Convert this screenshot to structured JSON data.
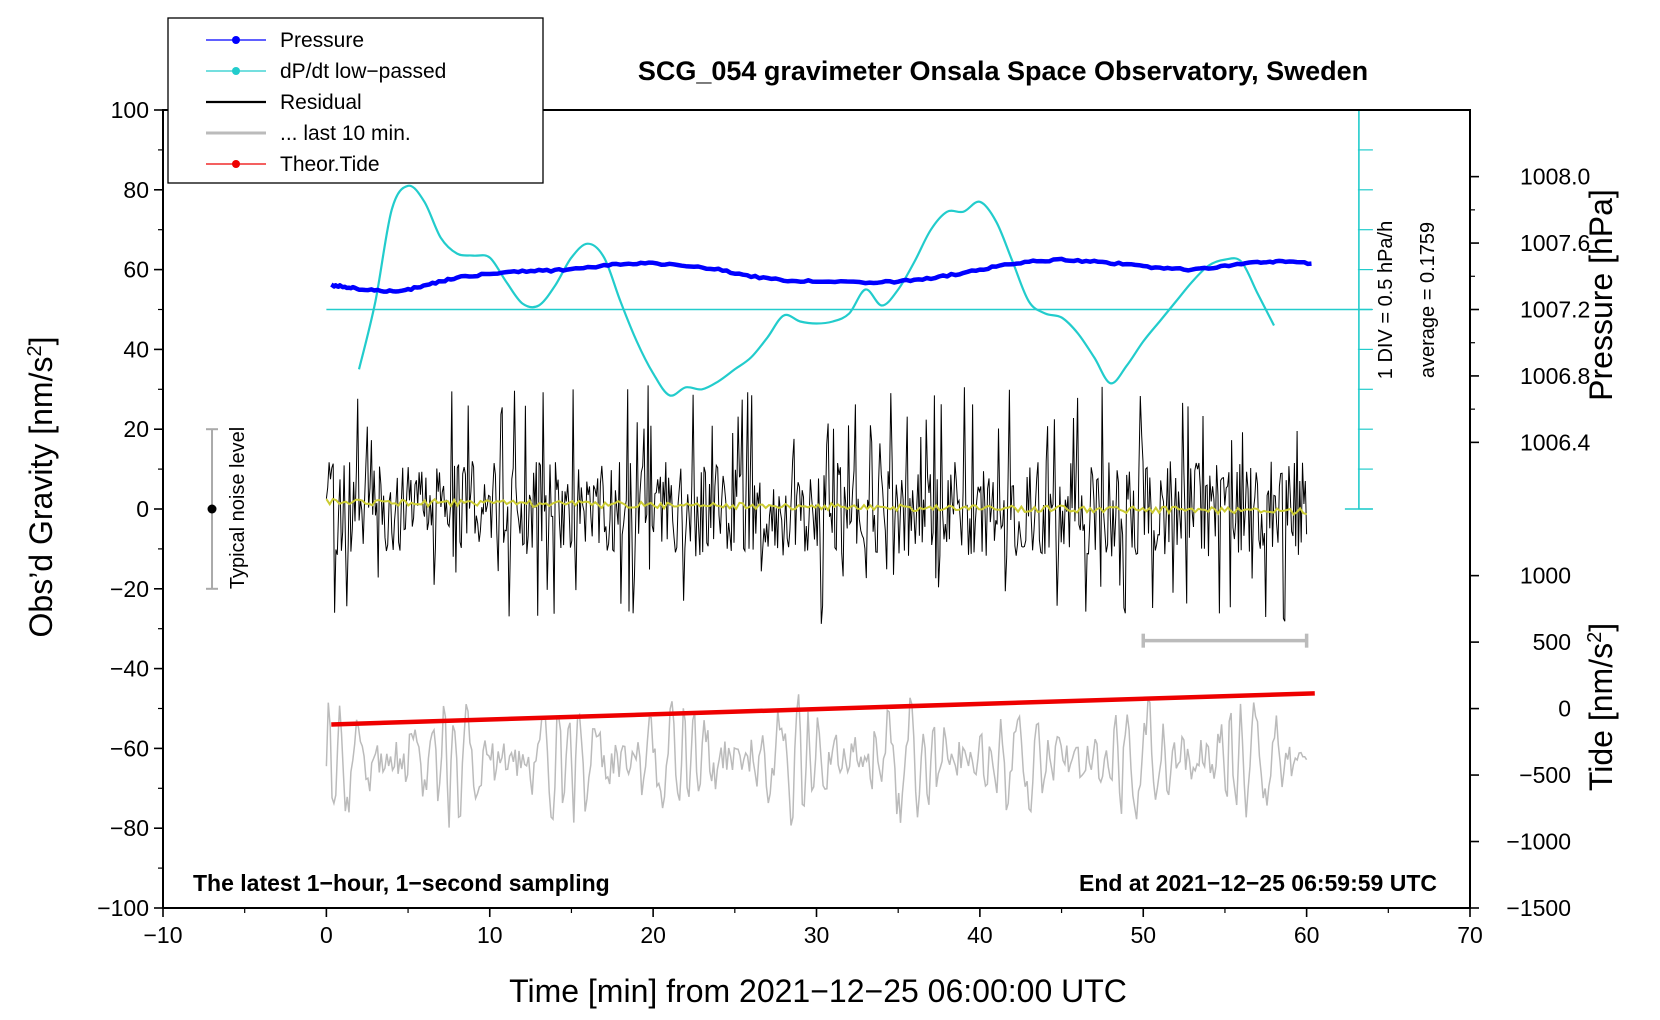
{
  "chart_data": {
    "type": "line",
    "title": "SCG_054 gravimeter Onsala Space Observatory, Sweden",
    "xlabel": "Time [min] from 2021−12−25 06:00:00 UTC",
    "ylabel_left": "Obs’d Gravity [nm/s",
    "ylabel_left_sup": "2",
    "ylabel_left_end": "]",
    "ylabel_right_top": "Pressure [hPa]",
    "ylabel_right_bottom": "Tide [nm/s",
    "ylabel_right_bottom_sup": "2",
    "ylabel_right_bottom_end": "]",
    "xlim": [
      -10,
      70
    ],
    "ylim": [
      -100,
      100
    ],
    "xticks": [
      -10,
      0,
      10,
      20,
      30,
      40,
      50,
      60,
      70
    ],
    "xtick_labels": [
      "−10",
      "0",
      "10",
      "20",
      "30",
      "40",
      "50",
      "60",
      "70"
    ],
    "yticks": [
      -100,
      -80,
      -60,
      -40,
      -20,
      0,
      20,
      40,
      60,
      80,
      100
    ],
    "ytick_labels": [
      "−100",
      "−80",
      "−60",
      "−40",
      "−20",
      "0",
      "20",
      "40",
      "60",
      "80",
      "100"
    ],
    "pressure_axis": {
      "ticks": [
        1006.4,
        1006.8,
        1007.2,
        1007.6,
        1008.0
      ],
      "tick_labels": [
        "1006.4",
        "1006.8",
        "1007.2",
        "1007.6",
        "1008.0"
      ],
      "map": {
        "value_a": 1007.2,
        "gravity_a": 50,
        "value_b": 1008.0,
        "gravity_b": 83.3
      }
    },
    "tide_axis": {
      "ticks": [
        -1500,
        -1000,
        -500,
        0,
        500,
        1000
      ],
      "tick_labels": [
        "−1500",
        "−1000",
        "−500",
        "0",
        "500",
        "1000"
      ],
      "map": {
        "value_a": -1500,
        "gravity_a": -100,
        "value_b": 1000,
        "gravity_b": -16.7
      }
    },
    "legend": {
      "position": "top-left",
      "entries": [
        {
          "label": "Pressure",
          "color": "#0000ff",
          "marker": true
        },
        {
          "label": "dP/dt low−passed",
          "color": "#22cccc",
          "marker": true
        },
        {
          "label": "Residual",
          "color": "#000000",
          "marker": false
        },
        {
          "label": "... last 10 min.",
          "color": "#bbbbbb",
          "marker": false
        },
        {
          "label": "Theor.Tide",
          "color": "#ee0000",
          "marker": true
        }
      ]
    },
    "annotations": {
      "noise_label": "Typical noise level",
      "noise_range": [
        -20,
        20
      ],
      "noise_x": -7,
      "scale_note_1": "1 DIV = 0.5 hPa/h",
      "scale_note_2": "average = 0.1759",
      "bottom_left": "The latest 1−hour, 1−second sampling",
      "bottom_right": "End at 2021−12−25 06:59:59 UTC",
      "last10_bracket": [
        50,
        60
      ],
      "last10_bracket_y": -33
    },
    "dpdt_axis": {
      "x": 63.2,
      "y_from": 0,
      "y_to": 100,
      "div_step": 10,
      "zero_line_y": 50,
      "zero_line_x_from": 0,
      "zero_line_x_to": 64
    },
    "series": [
      {
        "name": "Pressure",
        "color": "#0000ff",
        "units": "gravity-scaled",
        "points": [
          [
            0.3,
            56
          ],
          [
            1,
            55.8
          ],
          [
            2,
            55.2
          ],
          [
            3.5,
            54.5
          ],
          [
            5,
            55
          ],
          [
            6.5,
            56.5
          ],
          [
            8,
            58
          ],
          [
            10,
            59
          ],
          [
            12,
            59.6
          ],
          [
            14,
            59.8
          ],
          [
            16,
            60.5
          ],
          [
            18,
            61.4
          ],
          [
            20,
            61.6
          ],
          [
            22,
            61
          ],
          [
            24,
            60
          ],
          [
            26,
            58.3
          ],
          [
            28,
            57.3
          ],
          [
            30,
            57
          ],
          [
            33,
            56.8
          ],
          [
            35,
            57
          ],
          [
            37,
            57.8
          ],
          [
            39,
            59.2
          ],
          [
            41,
            60.8
          ],
          [
            43,
            62
          ],
          [
            45,
            62.5
          ],
          [
            47,
            62
          ],
          [
            49,
            61.3
          ],
          [
            51,
            60.3
          ],
          [
            53,
            60
          ],
          [
            55,
            60.8
          ],
          [
            57,
            61.8
          ],
          [
            58.5,
            62
          ],
          [
            60.3,
            61.5
          ]
        ]
      },
      {
        "name": "dP/dt low−passed",
        "color": "#22cccc",
        "units": "gravity-scaled",
        "points": [
          [
            2,
            35
          ],
          [
            3,
            52
          ],
          [
            4,
            75
          ],
          [
            5,
            81
          ],
          [
            6,
            77
          ],
          [
            7,
            68
          ],
          [
            8,
            64
          ],
          [
            9,
            63.5
          ],
          [
            10,
            63
          ],
          [
            11,
            57
          ],
          [
            12,
            51.5
          ],
          [
            13,
            51
          ],
          [
            14,
            56
          ],
          [
            15,
            63
          ],
          [
            16,
            66.5
          ],
          [
            17,
            63
          ],
          [
            18,
            52
          ],
          [
            19,
            42
          ],
          [
            20,
            34
          ],
          [
            21,
            28.5
          ],
          [
            22,
            30.5
          ],
          [
            23,
            30
          ],
          [
            24,
            32
          ],
          [
            25,
            35
          ],
          [
            26,
            38
          ],
          [
            27,
            43
          ],
          [
            28,
            48.5
          ],
          [
            29,
            47
          ],
          [
            30,
            46.5
          ],
          [
            31,
            47
          ],
          [
            32,
            49
          ],
          [
            33,
            55
          ],
          [
            34,
            51
          ],
          [
            35,
            55
          ],
          [
            36,
            62
          ],
          [
            37,
            70
          ],
          [
            38,
            74.5
          ],
          [
            39,
            74.5
          ],
          [
            40,
            77
          ],
          [
            41,
            72
          ],
          [
            42,
            62
          ],
          [
            43,
            52
          ],
          [
            44,
            49
          ],
          [
            45,
            48
          ],
          [
            46,
            44
          ],
          [
            47,
            38
          ],
          [
            48,
            31.5
          ],
          [
            49,
            36
          ],
          [
            50,
            42
          ],
          [
            51,
            47
          ],
          [
            52,
            52
          ],
          [
            53,
            57
          ],
          [
            54,
            61
          ],
          [
            55,
            62.5
          ],
          [
            56,
            62
          ],
          [
            57,
            54
          ],
          [
            58,
            46
          ]
        ]
      },
      {
        "name": "Residual",
        "color": "#000000",
        "units": "nm/s2",
        "generated": {
          "x_from": 0,
          "x_to": 60,
          "count": 720,
          "amplitude": 12,
          "peak_max": 31,
          "peak_min": -29,
          "seed": 7
        }
      },
      {
        "name": "Residual smoothed",
        "color": "#cccc33",
        "units": "nm/s2",
        "generated": {
          "x_from": 0,
          "x_to": 60,
          "count": 300,
          "start": 1.8,
          "end": -0.6,
          "wiggle": 0.9,
          "seed": 11
        }
      },
      {
        "name": "... last 10 min.",
        "color": "#bbbbbb",
        "units": "nm/s2",
        "generated": {
          "x_from": 0,
          "x_to": 60,
          "count": 520,
          "center": -63,
          "amplitude": 13,
          "extreme_max": -36,
          "extreme_min": -90,
          "seed": 3
        }
      },
      {
        "name": "Theor.Tide",
        "color": "#ee0000",
        "units": "nm/s2",
        "points": [
          [
            0.3,
            -54
          ],
          [
            60.5,
            -46.2
          ]
        ]
      }
    ]
  }
}
